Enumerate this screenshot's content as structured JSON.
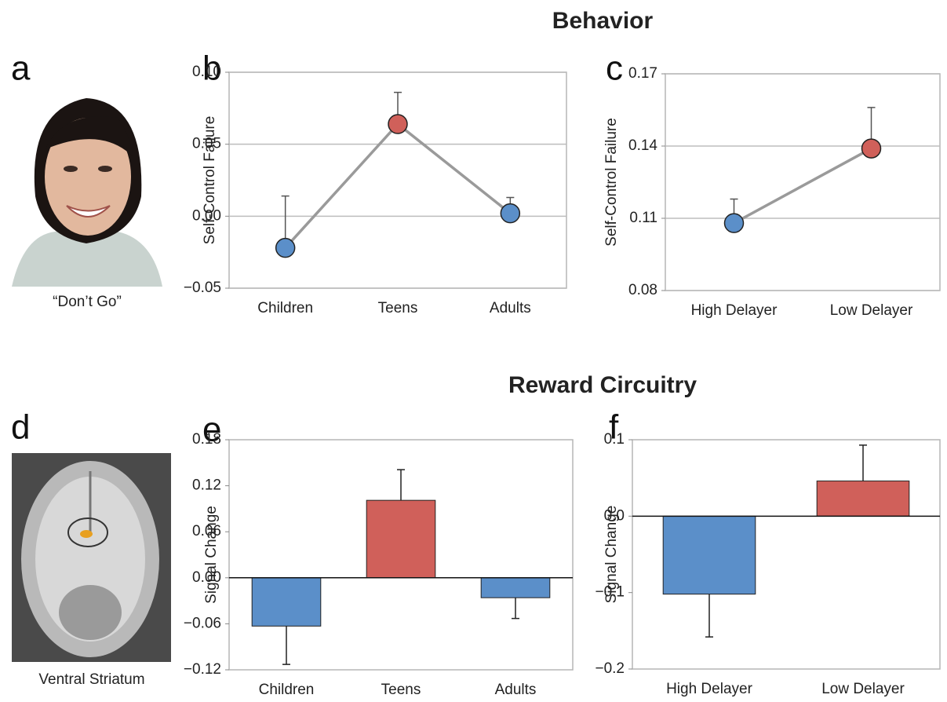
{
  "headings": [
    "Behavior",
    "Reward Circuitry"
  ],
  "images": [
    {
      "panel": "a",
      "caption": "“Don’t Go”"
    },
    {
      "panel": "d",
      "caption": "Ventral Striatum"
    }
  ],
  "chart_data": [
    {
      "type": "line",
      "panel": "b",
      "y_label": "Self-Control Failure",
      "categories": [
        "Children",
        "Teens",
        "Adults"
      ],
      "values": [
        -0.022,
        0.064,
        0.002
      ],
      "errors": [
        0.036,
        0.022,
        0.011
      ],
      "colors": [
        "#5b8fc9",
        "#d0605a",
        "#5b8fc9"
      ],
      "line_color": "#9a9a9a",
      "ylim": [
        -0.05,
        0.1
      ],
      "yticks": [
        {
          "value": -0.05,
          "label": "−0.05"
        },
        {
          "value": 0,
          "label": "0.00"
        },
        0.05,
        {
          "value": 0.1,
          "label": "0.10"
        }
      ],
      "grid": true
    },
    {
      "type": "line",
      "panel": "c",
      "y_label": "Self-Control Failure",
      "categories": [
        "High Delayer",
        "Low Delayer"
      ],
      "values": [
        0.108,
        0.139
      ],
      "errors": [
        0.01,
        0.017
      ],
      "colors": [
        "#5b8fc9",
        "#d0605a"
      ],
      "line_color": "#9a9a9a",
      "ylim": [
        0.08,
        0.17
      ],
      "yticks": [
        0.08,
        0.11,
        0.14,
        0.17
      ],
      "grid": true
    },
    {
      "type": "bar",
      "panel": "e",
      "y_label": "Signal Change",
      "categories": [
        "Children",
        "Teens",
        "Adults"
      ],
      "values": [
        -0.063,
        0.101,
        -0.026
      ],
      "errors": [
        0.05,
        0.04,
        0.027
      ],
      "colors": [
        "#5b8fc9",
        "#d0605a",
        "#5b8fc9"
      ],
      "ylim": [
        -0.12,
        0.18
      ],
      "yticks": [
        {
          "value": -0.12,
          "label": "−0.12"
        },
        {
          "value": -0.06,
          "label": "−0.06"
        },
        {
          "value": 0,
          "label": "0.00"
        },
        0.06,
        0.12,
        0.18
      ],
      "grid": false
    },
    {
      "type": "bar",
      "panel": "f",
      "y_label": "Signal Change",
      "categories": [
        "High Delayer",
        "Low Delayer"
      ],
      "values": [
        -0.102,
        0.046
      ],
      "errors": [
        0.056,
        0.047
      ],
      "colors": [
        "#5b8fc9",
        "#d0605a"
      ],
      "ylim": [
        -0.2,
        0.1
      ],
      "yticks": [
        {
          "value": -0.2,
          "label": "−0.2"
        },
        {
          "value": -0.1,
          "label": "−0.1"
        },
        {
          "value": 0,
          "label": "0.0"
        },
        0.1
      ],
      "grid": false
    }
  ]
}
